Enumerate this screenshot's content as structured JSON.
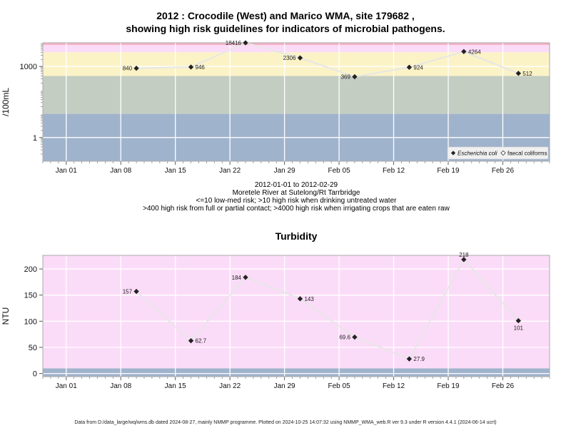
{
  "chart1": {
    "title_line1": "2012 : Crocodile (West) and Marico WMA, site 179682 ,",
    "title_line2": "showing high risk guidelines for indicators of microbial pathogens.",
    "sub_lines": [
      "2012-01-01 to 2012-02-29",
      "Moretele River at Sutelong/Rt Tarrbridge",
      "<=10 low-med risk; >10 high risk when drinking untreated water",
      ">400 high risk from full or partial contact; >4000 high risk when irrigating crops that are eaten raw"
    ]
  },
  "chart2": {
    "title": "Turbidity"
  },
  "footer": "Data from D:/data_large/wq/wms.db dated 2024-08-27, mainly NMMP programme. Plotted on 2024-10-25 14:07:32 using NMMP_WMA_web.R ver 9.3 under R version 4.4.1 (2024-06-14 ucrt)",
  "colors": {
    "band_low": "#a0b3cc",
    "band_med": "#c4cdc2",
    "band_contact": "#fbf3c6",
    "band_irrigation": "#fbdcf8",
    "band_top": "#f5b3c8",
    "line": "#e6e6e6",
    "point": "#222222"
  },
  "chart_data": [
    {
      "type": "line",
      "ylabel": "/100mL",
      "yscale": "log10",
      "ylim": [
        0.1,
        10000
      ],
      "y_ticks": [
        {
          "value": 1,
          "label": "1"
        },
        {
          "value": 1000,
          "label": "1000"
        }
      ],
      "x_ticks": [
        "Jan 01",
        "Jan 08",
        "Jan 15",
        "Jan 22",
        "Jan 29",
        "Feb 05",
        "Feb 12",
        "Feb 19",
        "Feb 26"
      ],
      "x_tick_dates": [
        "2012-01-01",
        "2012-01-08",
        "2012-01-15",
        "2012-01-22",
        "2012-01-29",
        "2012-02-05",
        "2012-02-12",
        "2012-02-19",
        "2012-02-26"
      ],
      "xlim": [
        "2011-12-29",
        "2012-03-03"
      ],
      "guideline_bands": [
        {
          "from": 0,
          "to": 10,
          "color": "#a0b3cc"
        },
        {
          "from": 10,
          "to": 400,
          "color": "#c4cdc2"
        },
        {
          "from": 400,
          "to": 4000,
          "color": "#fbf3c6"
        },
        {
          "from": 4000,
          "to": 8000,
          "color": "#fbdcf8"
        },
        {
          "from": 8000,
          "to": 10000,
          "color": "#f5b3c8"
        }
      ],
      "legend": {
        "placement": "bottom-right",
        "entries": [
          "Escherichia coli",
          "faecal coliforms"
        ]
      },
      "series": [
        {
          "name": "Escherichia coli",
          "points": [
            {
              "x": "2012-01-10",
              "y": 840,
              "label": "840",
              "label_side": "left"
            },
            {
              "x": "2012-01-17",
              "y": 946,
              "label": "946",
              "label_side": "right"
            },
            {
              "x": "2012-01-24",
              "y": 18416,
              "label": "18416",
              "label_side": "left"
            },
            {
              "x": "2012-01-31",
              "y": 2306,
              "label": "2306",
              "label_side": "left"
            },
            {
              "x": "2012-02-07",
              "y": 369,
              "label": "369",
              "label_side": "left"
            },
            {
              "x": "2012-02-14",
              "y": 924,
              "label": "924",
              "label_side": "right"
            },
            {
              "x": "2012-02-21",
              "y": 4264,
              "label": "4264",
              "label_side": "right"
            },
            {
              "x": "2012-02-28",
              "y": 512,
              "label": "512",
              "label_side": "right"
            }
          ]
        }
      ]
    },
    {
      "type": "line",
      "title": "Turbidity",
      "ylabel": "NTU",
      "ylim": [
        -6,
        226
      ],
      "y_ticks": [
        {
          "value": 0,
          "label": "0"
        },
        {
          "value": 50,
          "label": "50"
        },
        {
          "value": 100,
          "label": "100"
        },
        {
          "value": 150,
          "label": "150"
        },
        {
          "value": 200,
          "label": "200"
        }
      ],
      "x_ticks": [
        "Jan 01",
        "Jan 08",
        "Jan 15",
        "Jan 22",
        "Jan 29",
        "Feb 05",
        "Feb 12",
        "Feb 19",
        "Feb 26"
      ],
      "x_tick_dates": [
        "2012-01-01",
        "2012-01-08",
        "2012-01-15",
        "2012-01-22",
        "2012-01-29",
        "2012-02-05",
        "2012-02-12",
        "2012-02-19",
        "2012-02-26"
      ],
      "xlim": [
        "2011-12-29",
        "2012-03-03"
      ],
      "guideline_bands": [
        {
          "from": -6,
          "to": 10,
          "color": "#a0b3cc"
        },
        {
          "from": 10,
          "to": 226,
          "color": "#fbdcf8"
        }
      ],
      "series": [
        {
          "points": [
            {
              "x": "2012-01-10",
              "y": 157,
              "label": "157",
              "label_side": "left"
            },
            {
              "x": "2012-01-17",
              "y": 62.7,
              "label": "62.7",
              "label_side": "right"
            },
            {
              "x": "2012-01-24",
              "y": 184,
              "label": "184",
              "label_side": "left"
            },
            {
              "x": "2012-01-31",
              "y": 143,
              "label": "143",
              "label_side": "right"
            },
            {
              "x": "2012-02-07",
              "y": 69.6,
              "label": "69.6",
              "label_side": "left"
            },
            {
              "x": "2012-02-14",
              "y": 27.9,
              "label": "27.9",
              "label_side": "right"
            },
            {
              "x": "2012-02-21",
              "y": 218,
              "label": "218",
              "label_side": "above"
            },
            {
              "x": "2012-02-28",
              "y": 101,
              "label": "101",
              "label_side": "below"
            }
          ]
        }
      ]
    }
  ]
}
